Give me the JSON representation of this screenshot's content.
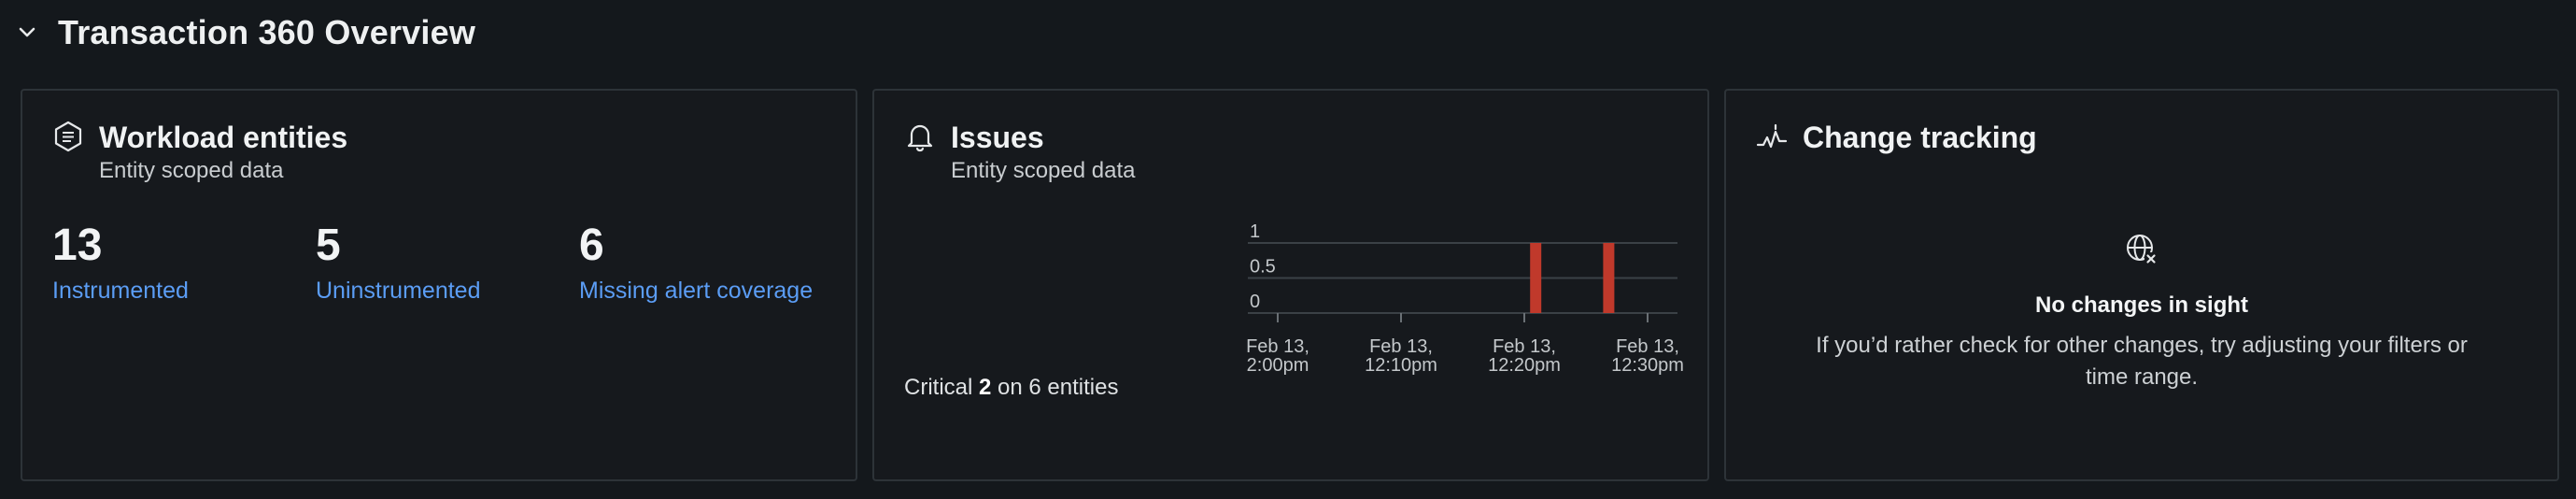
{
  "header": {
    "title": "Transaction 360 Overview"
  },
  "workload": {
    "title": "Workload entities",
    "subtitle": "Entity scoped data",
    "stats": [
      {
        "value": "13",
        "label": "Instrumented"
      },
      {
        "value": "5",
        "label": "Uninstrumented"
      },
      {
        "value": "6",
        "label": "Missing alert coverage"
      }
    ]
  },
  "issues": {
    "title": "Issues",
    "subtitle": "Entity scoped data",
    "critical_label": "Critical",
    "critical_count": "2",
    "critical_suffix": "on 6 entities"
  },
  "chart_data": {
    "type": "bar",
    "y_ticks": [
      "1",
      "0.5",
      "0"
    ],
    "ylim": [
      0,
      1
    ],
    "x_ticks": [
      [
        "Feb 13,",
        "2:00pm"
      ],
      [
        "Feb 13,",
        "12:10pm"
      ],
      [
        "Feb 13,",
        "12:20pm"
      ],
      [
        "Feb 13,",
        "12:30pm"
      ]
    ],
    "bars": [
      {
        "position": 0.67,
        "value": 1
      },
      {
        "position": 0.84,
        "value": 1
      }
    ],
    "bar_color": "#c0392b"
  },
  "change": {
    "title": "Change tracking",
    "empty_title": "No changes in sight",
    "empty_body": "If you’d rather check for other changes, try adjusting your filters or time range."
  }
}
